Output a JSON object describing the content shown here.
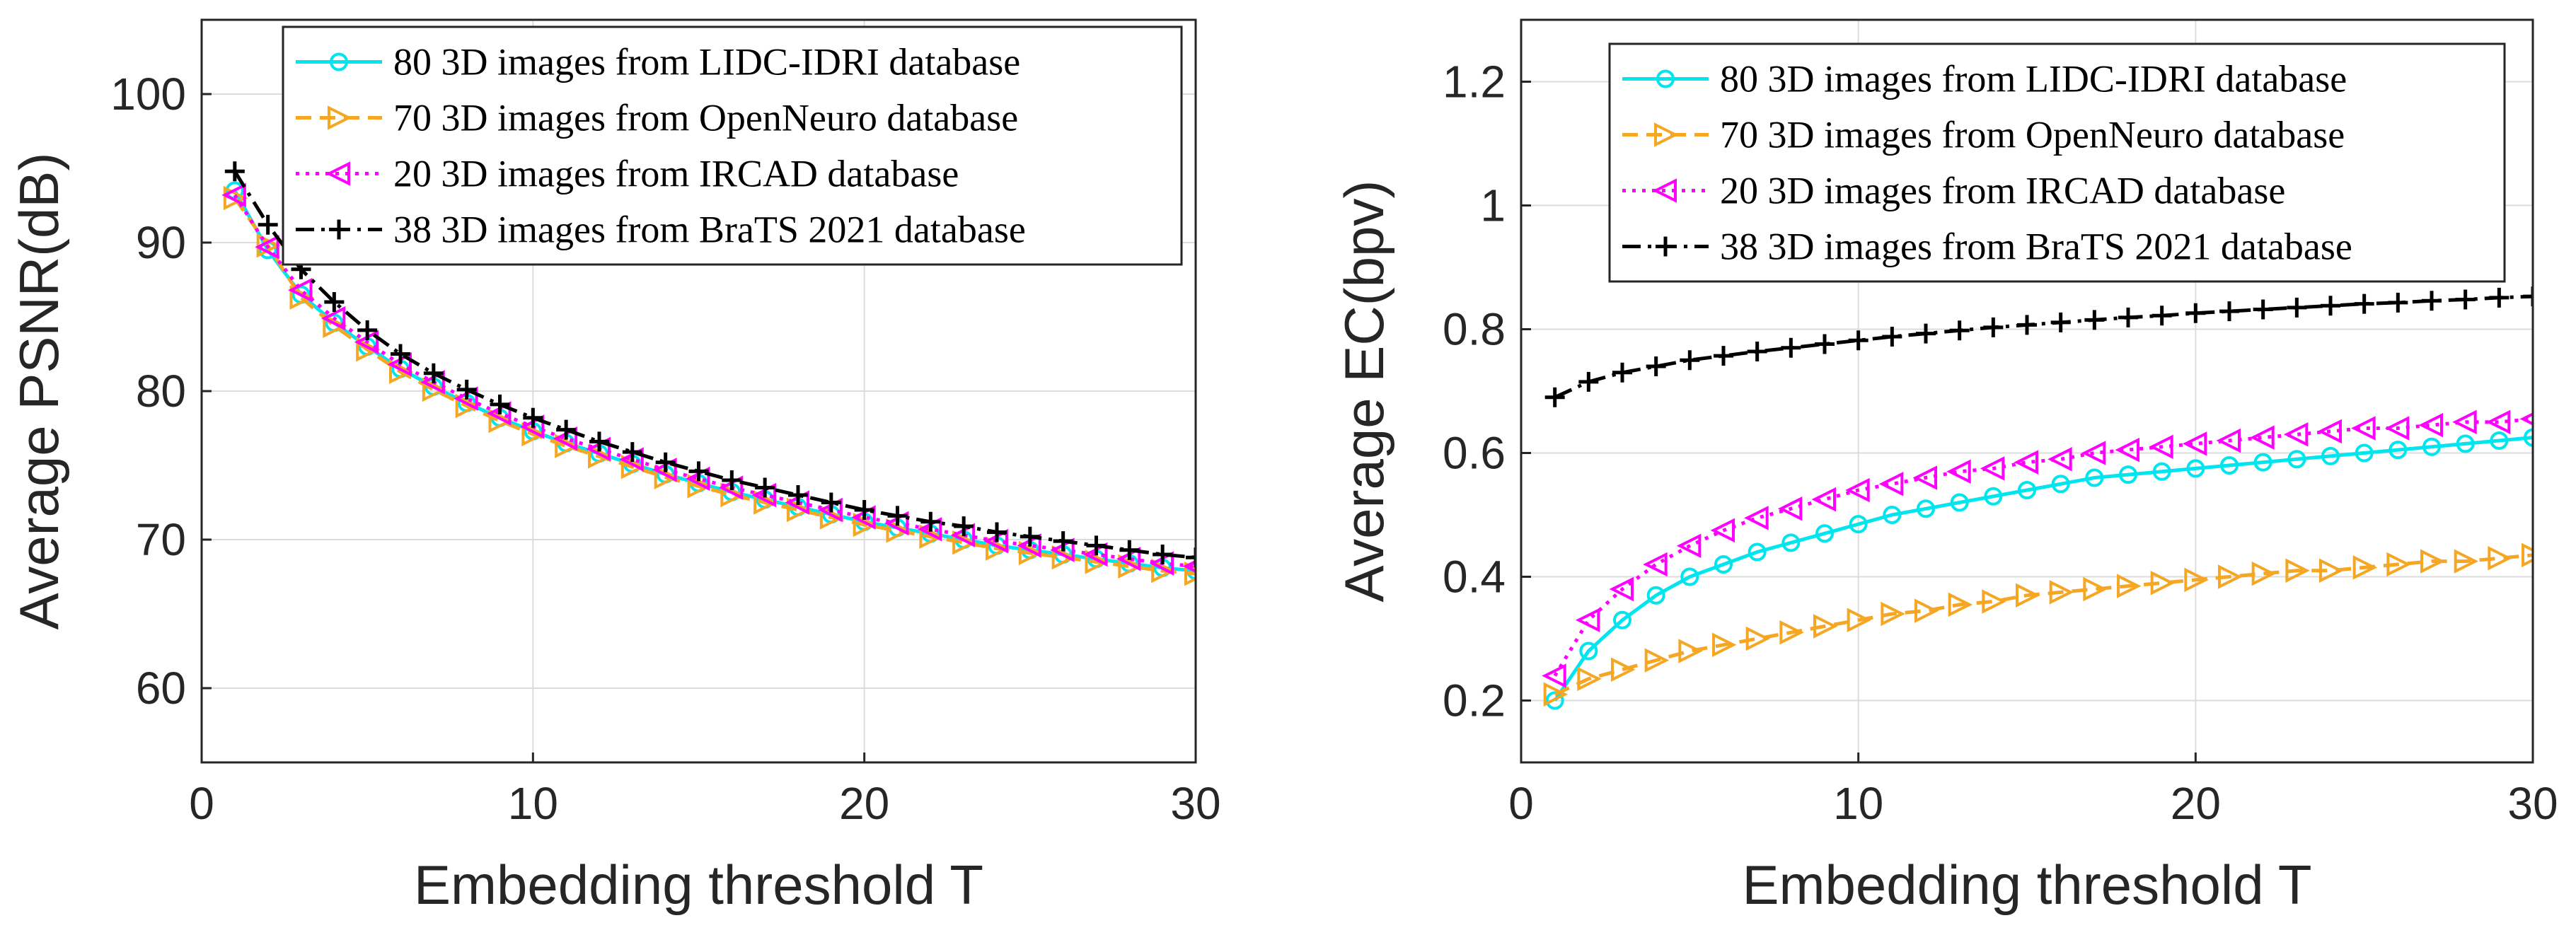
{
  "chart_data": [
    {
      "type": "line",
      "title": "",
      "xlabel": "Embedding threshold T",
      "ylabel": "Average PSNR(dB)",
      "xlim": [
        0,
        30
      ],
      "ylim": [
        55,
        105
      ],
      "xticks": [
        0,
        10,
        20,
        30
      ],
      "yticks": [
        60,
        70,
        80,
        90,
        100
      ],
      "grid": true,
      "legend_position": "top-right",
      "x": [
        1,
        2,
        3,
        4,
        5,
        6,
        7,
        8,
        9,
        10,
        11,
        12,
        13,
        14,
        15,
        16,
        17,
        18,
        19,
        20,
        21,
        22,
        23,
        24,
        25,
        26,
        27,
        28,
        29,
        30
      ],
      "series": [
        {
          "name": "80 3D images from LIDC-IDRI database",
          "color": "#00e5ee",
          "marker": "circle",
          "dash": "solid",
          "values": [
            93.5,
            89.5,
            86.5,
            84.6,
            83.0,
            81.5,
            80.3,
            79.2,
            78.2,
            77.3,
            76.5,
            75.8,
            75.1,
            74.4,
            73.8,
            73.2,
            72.7,
            72.2,
            71.7,
            71.2,
            70.8,
            70.4,
            70.0,
            69.6,
            69.3,
            69.0,
            68.7,
            68.4,
            68.1,
            67.9
          ]
        },
        {
          "name": "70 3D images from OpenNeuro database",
          "color": "#f5a623",
          "marker": "triangle-right",
          "dash": "dashed",
          "values": [
            93.0,
            89.8,
            86.3,
            84.4,
            82.8,
            81.3,
            80.1,
            79.0,
            78.0,
            77.1,
            76.3,
            75.6,
            74.9,
            74.2,
            73.6,
            73.0,
            72.5,
            72.0,
            71.5,
            71.0,
            70.6,
            70.2,
            69.8,
            69.4,
            69.1,
            68.8,
            68.5,
            68.2,
            67.9,
            67.7
          ]
        },
        {
          "name": "20 3D images from IRCAD database",
          "color": "#ff00ff",
          "marker": "triangle-left",
          "dash": "dotted",
          "values": [
            93.2,
            89.7,
            86.8,
            84.9,
            83.3,
            81.8,
            80.6,
            79.5,
            78.5,
            77.6,
            76.8,
            76.1,
            75.4,
            74.7,
            74.1,
            73.5,
            73.0,
            72.5,
            72.0,
            71.5,
            71.1,
            70.7,
            70.3,
            69.9,
            69.6,
            69.3,
            69.0,
            68.7,
            68.4,
            68.2
          ]
        },
        {
          "name": "38 3D images from BraTS 2021 database",
          "color": "#000000",
          "marker": "plus",
          "dash": "dashdot",
          "values": [
            94.8,
            91.2,
            88.2,
            86.0,
            84.1,
            82.5,
            81.2,
            80.1,
            79.1,
            78.2,
            77.4,
            76.6,
            75.9,
            75.2,
            74.6,
            74.0,
            73.5,
            73.0,
            72.5,
            72.0,
            71.6,
            71.2,
            70.9,
            70.5,
            70.2,
            69.9,
            69.6,
            69.3,
            69.0,
            68.8
          ]
        }
      ]
    },
    {
      "type": "line",
      "title": "",
      "xlabel": "Embedding threshold T",
      "ylabel": "Average EC(bpv)",
      "xlim": [
        0,
        30
      ],
      "ylim": [
        0.1,
        1.3
      ],
      "xticks": [
        0,
        10,
        20,
        30
      ],
      "yticks": [
        0.2,
        0.4,
        0.6,
        0.8,
        1.0,
        1.2
      ],
      "ytick_labels": [
        "0.2",
        "0.4",
        "0.6",
        "0.8",
        "1",
        "1.2"
      ],
      "grid": true,
      "legend_position": "top-right",
      "x": [
        1,
        2,
        3,
        4,
        5,
        6,
        7,
        8,
        9,
        10,
        11,
        12,
        13,
        14,
        15,
        16,
        17,
        18,
        19,
        20,
        21,
        22,
        23,
        24,
        25,
        26,
        27,
        28,
        29,
        30
      ],
      "series": [
        {
          "name": "80 3D images from LIDC-IDRI database",
          "color": "#00e5ee",
          "marker": "circle",
          "dash": "solid",
          "values": [
            0.2,
            0.28,
            0.33,
            0.37,
            0.4,
            0.42,
            0.44,
            0.455,
            0.47,
            0.485,
            0.5,
            0.51,
            0.52,
            0.53,
            0.54,
            0.55,
            0.56,
            0.565,
            0.57,
            0.575,
            0.58,
            0.585,
            0.59,
            0.595,
            0.6,
            0.605,
            0.61,
            0.615,
            0.62,
            0.625
          ]
        },
        {
          "name": "70 3D images from OpenNeuro database",
          "color": "#f5a623",
          "marker": "triangle-right",
          "dash": "dashed",
          "values": [
            0.21,
            0.235,
            0.25,
            0.265,
            0.28,
            0.29,
            0.3,
            0.31,
            0.32,
            0.33,
            0.34,
            0.345,
            0.355,
            0.36,
            0.37,
            0.375,
            0.38,
            0.385,
            0.39,
            0.395,
            0.4,
            0.405,
            0.41,
            0.41,
            0.415,
            0.42,
            0.425,
            0.425,
            0.43,
            0.435
          ]
        },
        {
          "name": "20 3D images from IRCAD database",
          "color": "#ff00ff",
          "marker": "triangle-left",
          "dash": "dotted",
          "values": [
            0.24,
            0.33,
            0.38,
            0.42,
            0.45,
            0.475,
            0.495,
            0.51,
            0.525,
            0.54,
            0.55,
            0.56,
            0.57,
            0.575,
            0.585,
            0.59,
            0.6,
            0.605,
            0.61,
            0.615,
            0.62,
            0.625,
            0.63,
            0.635,
            0.64,
            0.64,
            0.645,
            0.65,
            0.65,
            0.655
          ]
        },
        {
          "name": "38 3D images from BraTS 2021 database",
          "color": "#000000",
          "marker": "plus",
          "dash": "dashdot",
          "values": [
            0.69,
            0.715,
            0.73,
            0.74,
            0.75,
            0.757,
            0.764,
            0.77,
            0.776,
            0.782,
            0.788,
            0.793,
            0.798,
            0.803,
            0.807,
            0.811,
            0.815,
            0.819,
            0.822,
            0.826,
            0.829,
            0.832,
            0.835,
            0.838,
            0.841,
            0.843,
            0.846,
            0.848,
            0.851,
            0.853
          ]
        }
      ]
    }
  ]
}
